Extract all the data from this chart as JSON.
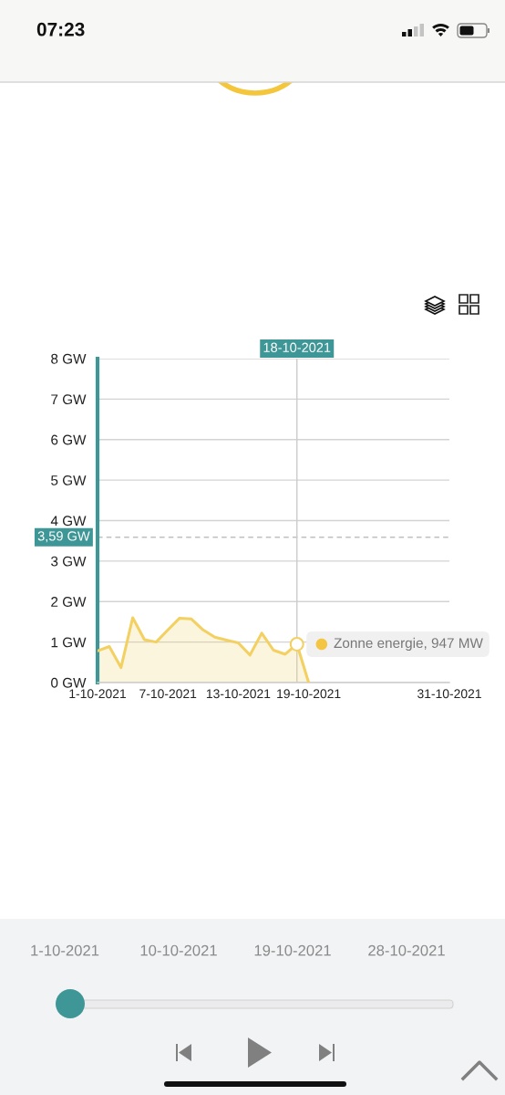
{
  "chart_data": {
    "type": "area",
    "x": [
      "2021-10-01",
      "2021-10-02",
      "2021-10-03",
      "2021-10-04",
      "2021-10-05",
      "2021-10-06",
      "2021-10-07",
      "2021-10-08",
      "2021-10-09",
      "2021-10-10",
      "2021-10-11",
      "2021-10-12",
      "2021-10-13",
      "2021-10-14",
      "2021-10-15",
      "2021-10-16",
      "2021-10-17",
      "2021-10-18",
      "2021-10-19"
    ],
    "series": [
      {
        "color": "#f3d062",
        "values": [
          0.78,
          0.89,
          0.37,
          1.6,
          1.06,
          1.0,
          1.3,
          1.59,
          1.57,
          1.3,
          1.12,
          1.05,
          0.98,
          0.68,
          1.22,
          0.8,
          0.7,
          0.947,
          0
        ]
      }
    ],
    "xlim": [
      "2021-10-01",
      "2021-10-31"
    ],
    "xticks": [
      {
        "value": "2021-10-01",
        "label": "1-10-2021"
      },
      {
        "value": "2021-10-07",
        "label": "7-10-2021"
      },
      {
        "value": "2021-10-13",
        "label": "13-10-2021"
      },
      {
        "value": "2021-10-19",
        "label": "19-10-2021"
      },
      {
        "value": "2021-10-31",
        "label": "31-10-2021"
      }
    ],
    "ylim": [
      0,
      8
    ],
    "yticks": [
      {
        "value": 0,
        "label": "0 GW"
      },
      {
        "value": 1,
        "label": "1 GW"
      },
      {
        "value": 2,
        "label": "2 GW"
      },
      {
        "value": 3,
        "label": "3 GW"
      },
      {
        "value": 4,
        "label": "4 GW"
      },
      {
        "value": 5,
        "label": "5 GW"
      },
      {
        "value": 6,
        "label": "6 GW"
      },
      {
        "value": 7,
        "label": "7 GW"
      },
      {
        "value": 8,
        "label": "8 GW"
      }
    ],
    "grid": "y",
    "ref_lines": [
      {
        "axis": "y",
        "value": 3.59,
        "label": "3,59 GW",
        "color": "#c0c0c0",
        "line_style": "dashed"
      },
      {
        "axis": "x",
        "value": "2021-10-18",
        "label": "18-10-2021",
        "color": "#cccccc"
      }
    ],
    "annotations": [
      {
        "text": "Zonne energie, 947 MW",
        "x": "2021-10-18",
        "y": 0.947
      },
      "07:23",
      "1-10-2021",
      "10-10-2021",
      "19-10-2021",
      "28-10-2021"
    ]
  }
}
